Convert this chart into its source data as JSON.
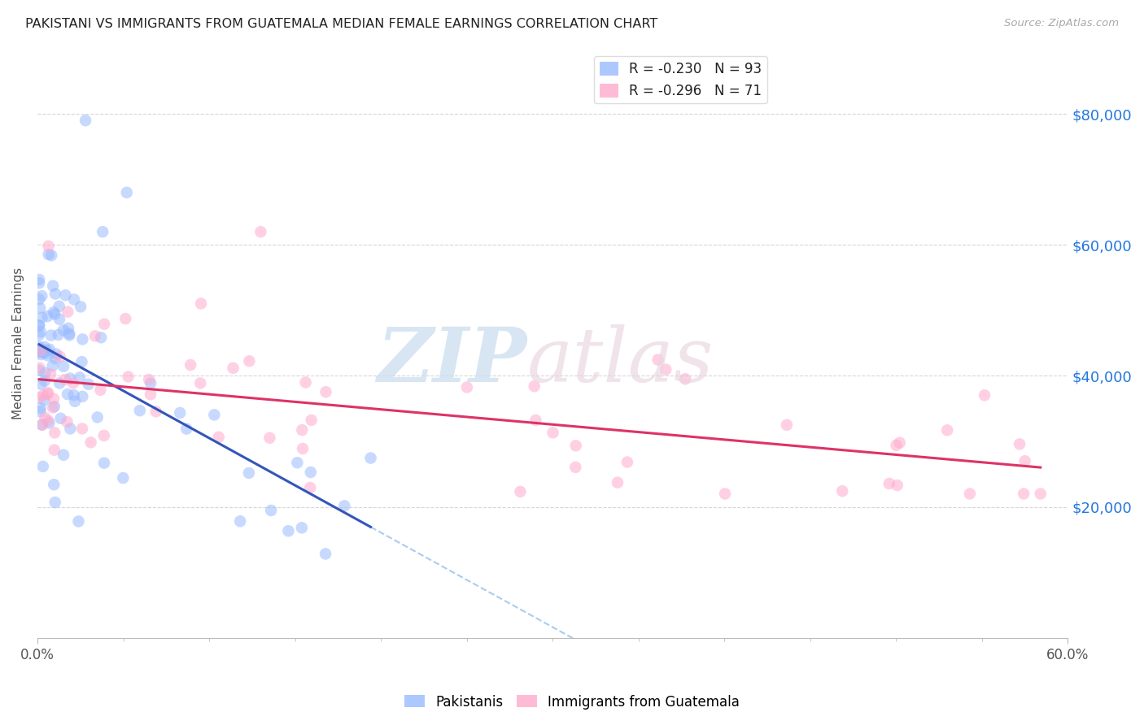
{
  "title": "PAKISTANI VS IMMIGRANTS FROM GUATEMALA MEDIAN FEMALE EARNINGS CORRELATION CHART",
  "source": "Source: ZipAtlas.com",
  "ylabel": "Median Female Earnings",
  "ytick_labels": [
    "$20,000",
    "$40,000",
    "$60,000",
    "$80,000"
  ],
  "ytick_values": [
    20000,
    40000,
    60000,
    80000
  ],
  "ylim": [
    0,
    90000
  ],
  "xlim": [
    0.0,
    0.6
  ],
  "legend_entries": [
    {
      "label": "R = -0.230   N = 93",
      "color": "#99bbff"
    },
    {
      "label": "R = -0.296   N = 71",
      "color": "#ffaacc"
    }
  ],
  "pakistanis_legend": "Pakistanis",
  "guatemala_legend": "Immigrants from Guatemala",
  "blue_color": "#99bbff",
  "pink_color": "#ffaacc",
  "blue_line_color": "#3355bb",
  "pink_line_color": "#dd3366",
  "dashed_line_color": "#aaccee",
  "background_color": "#ffffff",
  "grid_color": "#cccccc",
  "title_color": "#222222",
  "ylabel_color": "#555555",
  "right_ytick_color": "#2277dd",
  "xtick_label_color": "#555555",
  "source_color": "#aaaaaa"
}
